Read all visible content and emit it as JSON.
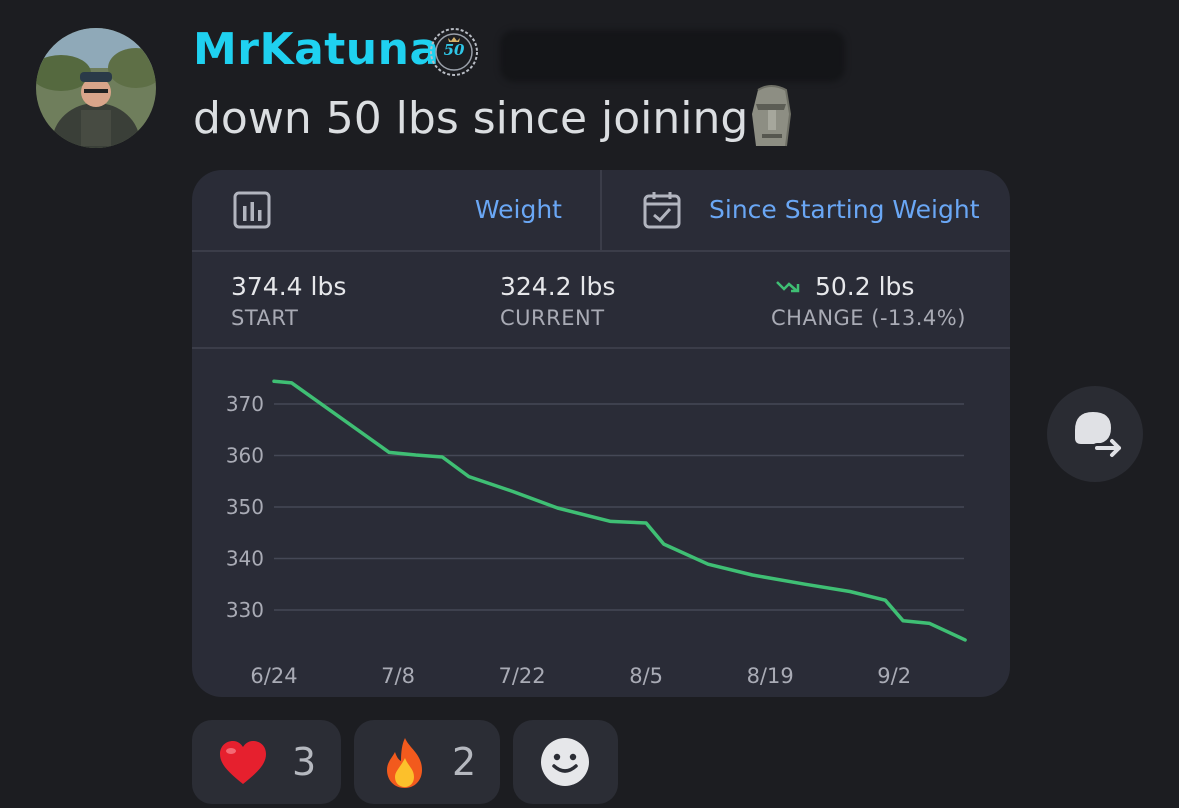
{
  "message": {
    "username": "MrKatuna",
    "badge_text": "50",
    "text": "down 50 lbs since joining",
    "emoji_icon": "moai-icon"
  },
  "card": {
    "header": {
      "metric_label": "Weight",
      "metric_icon": "bar-chart-icon",
      "range_label": "Since Starting Weight",
      "range_icon": "calendar-check-icon"
    },
    "stats": {
      "start_value": "374.4 lbs",
      "start_label": "START",
      "current_value": "324.2 lbs",
      "current_label": "CURRENT",
      "change_value": "50.2 lbs",
      "change_label": "CHANGE (-13.4%)",
      "change_icon": "trending-down-icon"
    }
  },
  "chart_data": {
    "type": "line",
    "y_ticks": [
      "370",
      "360",
      "350",
      "340",
      "330"
    ],
    "x_ticks": [
      "6/24",
      "7/8",
      "7/22",
      "8/5",
      "8/19",
      "9/2"
    ],
    "ylim": [
      325,
      372
    ],
    "line_color": "#3fbf74",
    "grid": true,
    "series": [
      {
        "x": [
          "6/24",
          "6/26",
          "7/7",
          "7/10",
          "7/13",
          "7/16",
          "7/21",
          "7/26",
          "8/1",
          "8/5",
          "8/7",
          "8/12",
          "8/17",
          "8/23",
          "8/28",
          "9/1",
          "9/3",
          "9/6",
          "9/10"
        ],
        "values": [
          374.4,
          374.1,
          360.6,
          360.1,
          359.7,
          355.9,
          353.0,
          349.8,
          347.2,
          346.9,
          342.8,
          338.9,
          336.8,
          335.0,
          333.6,
          331.9,
          327.9,
          327.4,
          324.2
        ]
      }
    ]
  },
  "forward_button": {
    "icon": "forward-message-icon"
  },
  "reactions": [
    {
      "emoji": "heart-icon",
      "count": "3"
    },
    {
      "emoji": "fire-icon",
      "count": "2"
    },
    {
      "emoji": "add-reaction-icon"
    }
  ],
  "colors": {
    "background": "#1c1d21",
    "username": "#1fd1f0",
    "accent_blue": "#6aa7f5",
    "trend_green": "#3fbf74"
  }
}
